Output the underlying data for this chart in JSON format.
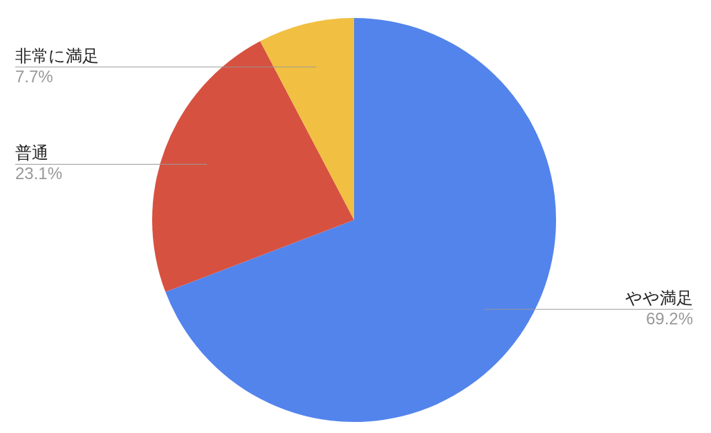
{
  "chart_data": {
    "type": "pie",
    "categories": [
      "やや満足",
      "普通",
      "非常に満足"
    ],
    "values": [
      69.2,
      23.1,
      7.7
    ],
    "value_labels": [
      "69.2%",
      "23.1%",
      "7.7%"
    ],
    "colors": [
      "#5384ec",
      "#d75140",
      "#f1bf42"
    ]
  }
}
